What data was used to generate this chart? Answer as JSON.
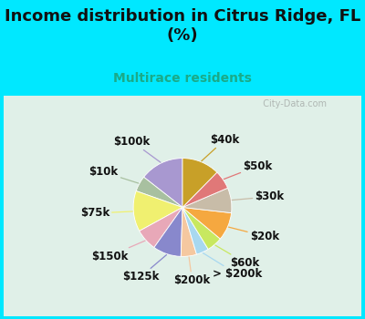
{
  "title": "Income distribution in Citrus Ridge, FL\n(%)",
  "subtitle": "Multirace residents",
  "labels": [
    "$100k",
    "$10k",
    "$75k",
    "$150k",
    "$125k",
    "$200k",
    "> $200k",
    "$60k",
    "$20k",
    "$30k",
    "$50k",
    "$40k"
  ],
  "values": [
    14,
    5,
    13,
    7,
    9,
    5,
    4,
    5,
    9,
    8,
    6,
    12
  ],
  "colors": [
    "#a898d0",
    "#a8c0a0",
    "#f0f070",
    "#e8a8b8",
    "#8888cc",
    "#f5c8a0",
    "#a8d8f0",
    "#c8e860",
    "#f5a840",
    "#c8bca8",
    "#e07878",
    "#c8a028"
  ],
  "background_color": "#00e8ff",
  "chart_bg_color": "#e0f0e8",
  "watermark": "  City-Data.com",
  "title_fontsize": 13,
  "subtitle_fontsize": 10,
  "label_fontsize": 8.5,
  "startangle": 90
}
